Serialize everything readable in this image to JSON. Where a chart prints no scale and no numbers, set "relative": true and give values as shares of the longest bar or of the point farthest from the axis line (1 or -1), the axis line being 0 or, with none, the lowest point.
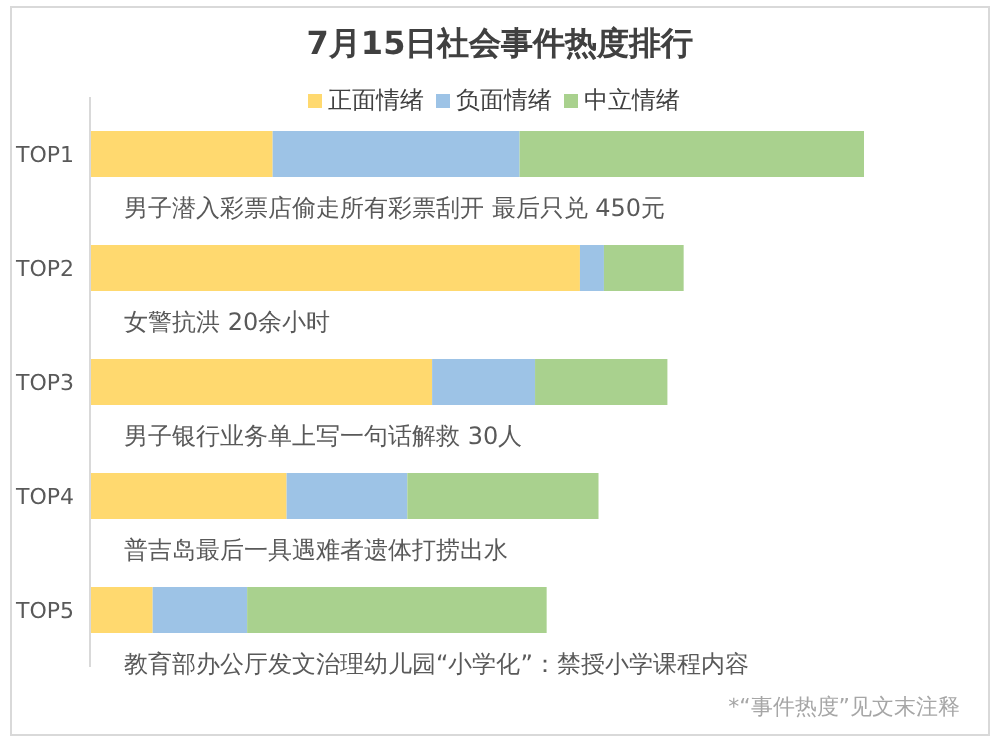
{
  "chart_data": {
    "type": "bar",
    "orientation": "horizontal",
    "stacked": true,
    "relative": true,
    "title": "7月15日社会事件热度排行",
    "categories": [
      "TOP1",
      "TOP2",
      "TOP3",
      "TOP4",
      "TOP5"
    ],
    "legend": "top",
    "series": [
      {
        "name": "正面情绪",
        "color": "#ffd96f",
        "values": [
          0.236,
          0.633,
          0.442,
          0.254,
          0.081
        ]
      },
      {
        "name": "负面情绪",
        "color": "#9dc3e6",
        "values": [
          0.319,
          0.031,
          0.133,
          0.156,
          0.122
        ]
      },
      {
        "name": "中立情绪",
        "color": "#a9d18e",
        "values": [
          0.445,
          0.103,
          0.171,
          0.247,
          0.387
        ]
      }
    ],
    "annotations": [
      "男子潜入彩票店偷走所有彩票刮开  最后只兑 450元",
      "女警抗洪 20余小时",
      "男子银行业务单上写一句话解救 30人",
      "普吉岛最后一具遇难者遗体打捞出水",
      "教育部办公厅发文治理幼儿园“小学化”：禁授小学课程内容",
      "*“事件热度”见文末注释"
    ]
  }
}
